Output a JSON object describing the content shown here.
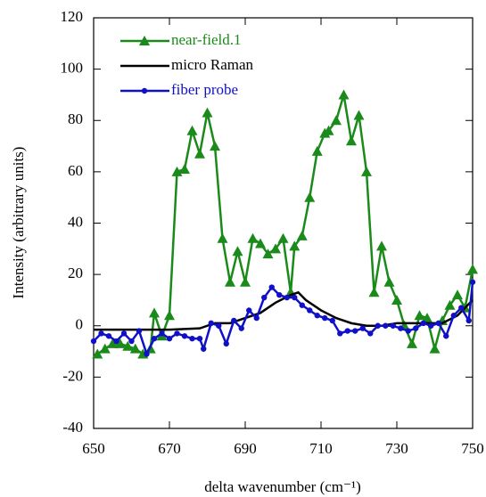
{
  "chart_data": {
    "type": "line",
    "x_label": "delta wavenumber (cm⁻¹)",
    "y_label": "Intensity (arbitrary units)",
    "xlim": [
      650,
      750
    ],
    "xticks": [
      650,
      670,
      690,
      710,
      730,
      750
    ],
    "ylim": [
      -40,
      120
    ],
    "yticks": [
      -40,
      -20,
      0,
      20,
      40,
      60,
      80,
      100,
      120
    ],
    "legend": "upper left",
    "series": [
      {
        "name": "near-field.1",
        "color": "#1a8a1a",
        "marker": "triangle",
        "x": [
          651,
          653,
          655,
          657,
          659,
          661,
          663,
          665,
          666,
          668,
          670,
          672,
          674,
          676,
          678,
          680,
          682,
          684,
          686,
          688,
          690,
          692,
          694,
          696,
          698,
          700,
          702,
          703,
          705,
          707,
          709,
          711,
          712,
          714,
          716,
          718,
          720,
          722,
          724,
          726,
          728,
          730,
          732,
          734,
          736,
          738,
          740,
          742,
          744,
          746,
          748,
          750
        ],
        "values": [
          -11,
          -9,
          -7,
          -7,
          -8,
          -9,
          -11,
          -9,
          5,
          -4,
          4,
          60,
          61,
          76,
          67,
          83,
          70,
          34,
          17,
          29,
          17,
          34,
          32,
          28,
          30,
          34,
          13,
          31,
          35,
          50,
          68,
          75,
          76,
          80,
          90,
          72,
          82,
          60,
          13,
          31,
          17,
          10,
          0,
          -7,
          4,
          3,
          -9,
          2,
          8,
          12,
          7,
          22
        ]
      },
      {
        "name": "micro Raman",
        "color": "#000000",
        "marker": "none",
        "x": [
          650,
          660,
          670,
          678,
          682,
          686,
          690,
          694,
          698,
          702,
          704,
          706,
          710,
          714,
          718,
          722,
          726,
          730,
          734,
          738,
          742,
          746,
          750
        ],
        "values": [
          -1.5,
          -1.5,
          -1.5,
          -1,
          1,
          1,
          3,
          5,
          9,
          12,
          13,
          10,
          6,
          3,
          1,
          0,
          0,
          1,
          1,
          1,
          1,
          4,
          10
        ]
      },
      {
        "name": "fiber probe",
        "color": "#1010c8",
        "marker": "circle",
        "x": [
          650,
          652,
          654,
          656,
          658,
          660,
          662,
          664,
          666,
          668,
          670,
          672,
          674,
          676,
          678,
          679,
          681,
          683,
          685,
          687,
          689,
          691,
          693,
          695,
          697,
          699,
          701,
          703,
          705,
          707,
          709,
          711,
          713,
          715,
          717,
          719,
          721,
          723,
          725,
          727,
          729,
          731,
          733,
          735,
          737,
          739,
          741,
          743,
          745,
          747,
          749,
          750
        ],
        "values": [
          -6,
          -3,
          -4,
          -6,
          -3,
          -6,
          -2,
          -11,
          -5,
          -3,
          -5,
          -3,
          -4,
          -5,
          -5,
          -9,
          1,
          0,
          -7,
          2,
          -1,
          6,
          3,
          11,
          15,
          12,
          11,
          11,
          8,
          6,
          4,
          3,
          2,
          -3,
          -2,
          -2,
          -1,
          -3,
          0,
          0,
          0,
          -1,
          -2,
          -1,
          1,
          0,
          1,
          -4,
          4,
          7,
          2,
          17
        ]
      }
    ]
  }
}
